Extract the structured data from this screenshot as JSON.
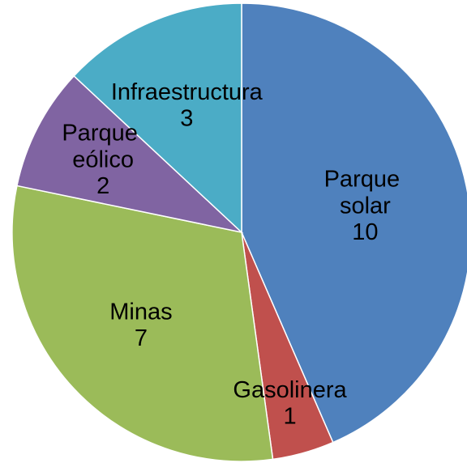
{
  "chart_data": {
    "type": "pie",
    "categories": [
      "Parque solar",
      "Gasolinera",
      "Minas",
      "Parque eólico",
      "Infraestructura"
    ],
    "values": [
      10,
      1,
      7,
      2,
      3
    ],
    "colors": [
      "#4f81bd",
      "#c0504d",
      "#9bbb59",
      "#8064a2",
      "#4bacc6"
    ]
  }
}
